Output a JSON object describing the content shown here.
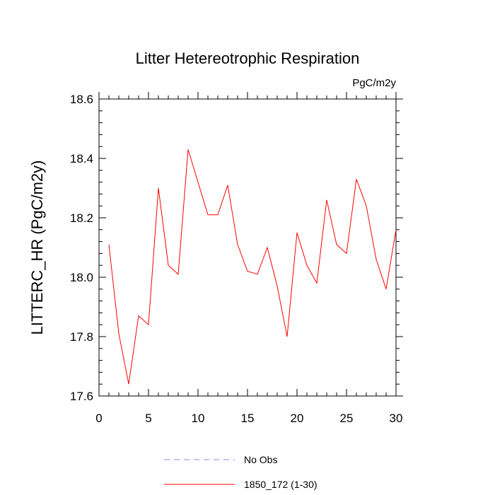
{
  "chart_data": {
    "type": "line",
    "title": "Litter Hetereotrophic Respiration",
    "units": "PgC/m2y",
    "ylabel": "LITTERC_HR  (PgC/m2y)",
    "xlabel": "",
    "xlim": [
      0,
      30
    ],
    "ylim": [
      17.6,
      18.6
    ],
    "x_ticks": [
      0,
      5,
      10,
      15,
      20,
      25,
      30
    ],
    "x_tick_labels": [
      "0",
      "5",
      "10",
      "15",
      "20",
      "25",
      "30"
    ],
    "y_ticks": [
      17.6,
      17.8,
      18.0,
      18.2,
      18.4,
      18.6
    ],
    "y_tick_labels": [
      "17.6",
      "17.8",
      "18.0",
      "18.2",
      "18.4",
      "18.6"
    ],
    "grid": false,
    "legend_position": "bottom",
    "series": [
      {
        "name": "No Obs",
        "color": "#8a8ae0",
        "style": "dashed",
        "x": [],
        "values": []
      },
      {
        "name": "1850_172 (1-30)",
        "color": "#ff0000",
        "style": "solid",
        "x": [
          1,
          2,
          3,
          4,
          5,
          6,
          7,
          8,
          9,
          10,
          11,
          12,
          13,
          14,
          15,
          16,
          17,
          18,
          19,
          20,
          21,
          22,
          23,
          24,
          25,
          26,
          27,
          28,
          29,
          30
        ],
        "values": [
          18.11,
          17.81,
          17.64,
          17.87,
          17.84,
          18.3,
          18.04,
          18.01,
          18.43,
          18.32,
          18.21,
          18.21,
          18.31,
          18.11,
          18.02,
          18.01,
          18.1,
          17.97,
          17.8,
          18.15,
          18.04,
          17.98,
          18.26,
          18.11,
          18.08,
          18.33,
          18.24,
          18.06,
          17.96,
          18.16
        ]
      }
    ]
  }
}
